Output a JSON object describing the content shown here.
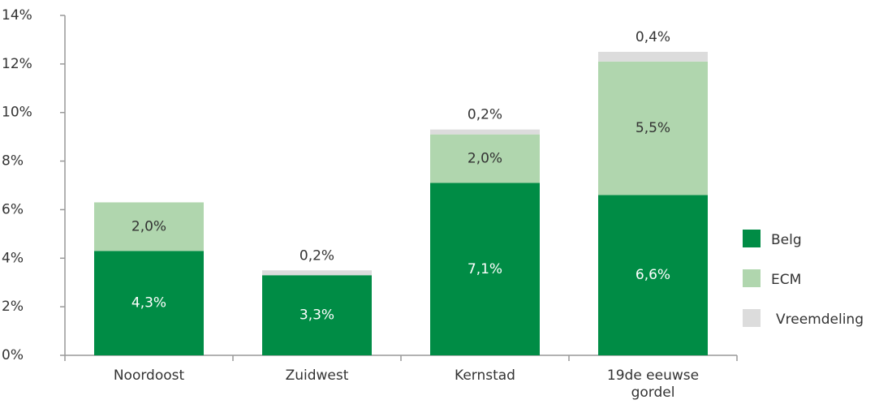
{
  "chart_data": {
    "type": "stacked_bar",
    "categories": [
      "Noordoost",
      "Zuidwest",
      "Kernstad",
      "19de eeuwse gordel"
    ],
    "series": [
      {
        "name": "Belg",
        "color": "#008c45",
        "values": [
          4.3,
          3.3,
          7.1,
          6.6
        ],
        "value_labels": [
          "4,3%",
          "3,3%",
          "7,1%",
          "6,6%"
        ]
      },
      {
        "name": "ECM",
        "color": "#b0d6ae",
        "values": [
          2.0,
          null,
          2.0,
          5.5
        ],
        "value_labels": [
          "2,0%",
          null,
          "2,0%",
          "5,5%"
        ]
      },
      {
        "name": "Vreemdeling",
        "color": "#dcdcdc",
        "values": [
          null,
          0.2,
          0.2,
          0.4
        ],
        "value_labels": [
          null,
          "0,2%",
          "0,2%",
          "0,4%"
        ]
      }
    ],
    "ylim": [
      0,
      14
    ],
    "yticks": [
      {
        "value": 0,
        "label": "0%"
      },
      {
        "value": 2,
        "label": "2%"
      },
      {
        "value": 4,
        "label": "4%"
      },
      {
        "value": 6,
        "label": "6%"
      },
      {
        "value": 8,
        "label": "8%"
      },
      {
        "value": 10,
        "label": "10%"
      },
      {
        "value": 12,
        "label": "12%"
      },
      {
        "value": 14,
        "label": "14%"
      }
    ],
    "legend": "right"
  }
}
